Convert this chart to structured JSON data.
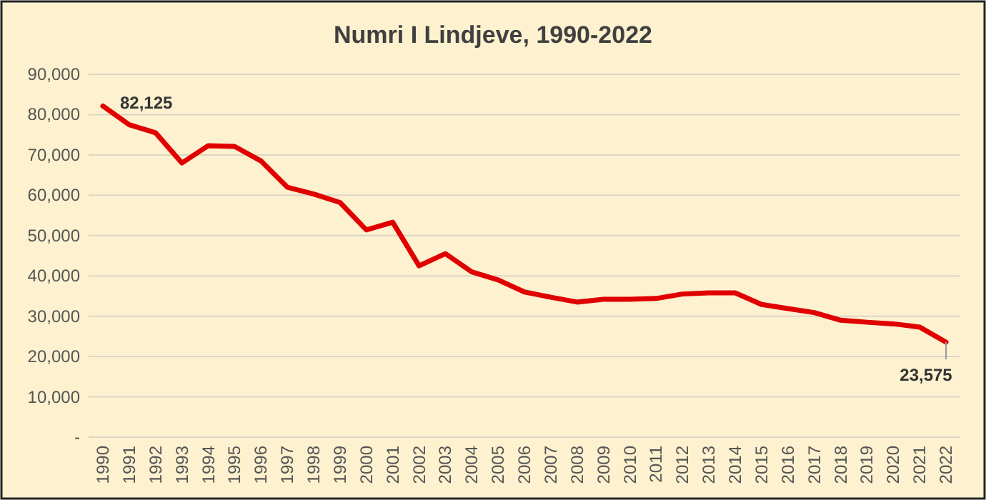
{
  "chart_data": {
    "type": "line",
    "title": "Numri I Lindjeve, 1990-2022",
    "categories": [
      "1990",
      "1991",
      "1992",
      "1993",
      "1994",
      "1995",
      "1996",
      "1997",
      "1998",
      "1999",
      "2000",
      "2001",
      "2002",
      "2003",
      "2004",
      "2005",
      "2006",
      "2007",
      "2008",
      "2009",
      "2010",
      "2011",
      "2012",
      "2013",
      "2014",
      "2015",
      "2016",
      "2017",
      "2018",
      "2019",
      "2020",
      "2021",
      "2022"
    ],
    "series": [
      {
        "color": "#e00000",
        "values": [
          82125,
          77500,
          75500,
          68000,
          72300,
          72100,
          68500,
          62000,
          60300,
          58200,
          51400,
          53300,
          42500,
          45500,
          41000,
          39000,
          36000,
          34700,
          33500,
          34200,
          34200,
          34400,
          35500,
          35800,
          35800,
          32900,
          31900,
          30900,
          29000,
          28500,
          28100,
          27300,
          23575
        ],
        "value_labels": [
          "82,125",
          null,
          null,
          null,
          null,
          null,
          null,
          null,
          null,
          null,
          null,
          null,
          null,
          null,
          null,
          null,
          null,
          null,
          null,
          null,
          null,
          null,
          null,
          null,
          null,
          null,
          null,
          null,
          null,
          null,
          null,
          null,
          "23,575"
        ]
      }
    ],
    "ylim": [
      0,
      90000
    ],
    "yticks": [
      {
        "value": 0,
        "label": "-"
      },
      {
        "value": 10000,
        "label": "10,000"
      },
      {
        "value": 20000,
        "label": "20,000"
      },
      {
        "value": 30000,
        "label": "30,000"
      },
      {
        "value": 40000,
        "label": "40,000"
      },
      {
        "value": 50000,
        "label": "50,000"
      },
      {
        "value": 60000,
        "label": "60,000"
      },
      {
        "value": 70000,
        "label": "70,000"
      },
      {
        "value": 80000,
        "label": "80,000"
      },
      {
        "value": 90000,
        "label": "90,000"
      }
    ],
    "grid": "y",
    "line_style": "solid",
    "marker": "none"
  }
}
